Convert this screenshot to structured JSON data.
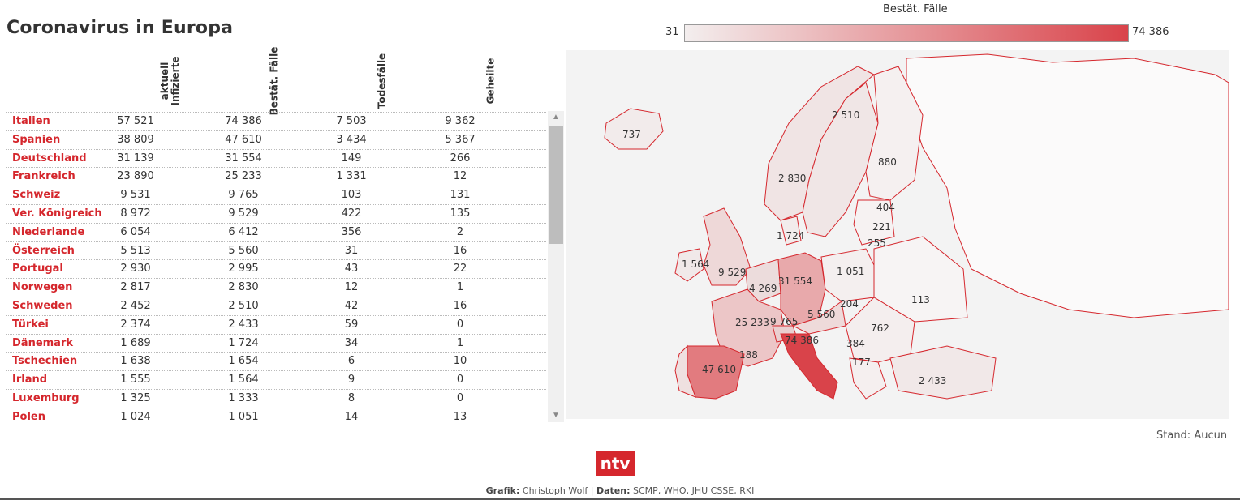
{
  "title": "Coronavirus in Europa",
  "legend": {
    "title": "Bestät. Fälle",
    "min": "31",
    "max": "74 386",
    "color_low": "#f3eeee",
    "color_high": "#d9434a"
  },
  "columns": [
    "aktuell\nInfizierte",
    "Bestät. Fälle",
    "Todesfälle",
    "Geheilte"
  ],
  "table_rows": [
    {
      "country": "Italien",
      "aktuell": "57 521",
      "bestaetigt": "74 386",
      "tote": "7 503",
      "geheilt": "9 362"
    },
    {
      "country": "Spanien",
      "aktuell": "38 809",
      "bestaetigt": "47 610",
      "tote": "3 434",
      "geheilt": "5 367"
    },
    {
      "country": "Deutschland",
      "aktuell": "31 139",
      "bestaetigt": "31 554",
      "tote": "149",
      "geheilt": "266"
    },
    {
      "country": "Frankreich",
      "aktuell": "23 890",
      "bestaetigt": "25 233",
      "tote": "1 331",
      "geheilt": "12"
    },
    {
      "country": "Schweiz",
      "aktuell": "9 531",
      "bestaetigt": "9 765",
      "tote": "103",
      "geheilt": "131"
    },
    {
      "country": "Ver. Königreich",
      "aktuell": "8 972",
      "bestaetigt": "9 529",
      "tote": "422",
      "geheilt": "135"
    },
    {
      "country": "Niederlande",
      "aktuell": "6 054",
      "bestaetigt": "6 412",
      "tote": "356",
      "geheilt": "2"
    },
    {
      "country": "Österreich",
      "aktuell": "5 513",
      "bestaetigt": "5 560",
      "tote": "31",
      "geheilt": "16"
    },
    {
      "country": "Portugal",
      "aktuell": "2 930",
      "bestaetigt": "2 995",
      "tote": "43",
      "geheilt": "22"
    },
    {
      "country": "Norwegen",
      "aktuell": "2 817",
      "bestaetigt": "2 830",
      "tote": "12",
      "geheilt": "1"
    },
    {
      "country": "Schweden",
      "aktuell": "2 452",
      "bestaetigt": "2 510",
      "tote": "42",
      "geheilt": "16"
    },
    {
      "country": "Türkei",
      "aktuell": "2 374",
      "bestaetigt": "2 433",
      "tote": "59",
      "geheilt": "0"
    },
    {
      "country": "Dänemark",
      "aktuell": "1 689",
      "bestaetigt": "1 724",
      "tote": "34",
      "geheilt": "1"
    },
    {
      "country": "Tschechien",
      "aktuell": "1 638",
      "bestaetigt": "1 654",
      "tote": "6",
      "geheilt": "10"
    },
    {
      "country": "Irland",
      "aktuell": "1 555",
      "bestaetigt": "1 564",
      "tote": "9",
      "geheilt": "0"
    },
    {
      "country": "Luxemburg",
      "aktuell": "1 325",
      "bestaetigt": "1 333",
      "tote": "8",
      "geheilt": "0"
    },
    {
      "country": "Polen",
      "aktuell": "1 024",
      "bestaetigt": "1 051",
      "tote": "14",
      "geheilt": "13"
    }
  ],
  "chart_data": {
    "type": "table",
    "columns": [
      "aktuell Infizierte",
      "Bestät. Fälle",
      "Todesfälle",
      "Geheilte"
    ],
    "categories": [
      "Italien",
      "Spanien",
      "Deutschland",
      "Frankreich",
      "Schweiz",
      "Ver. Königreich",
      "Niederlande",
      "Österreich",
      "Portugal",
      "Norwegen",
      "Schweden",
      "Türkei",
      "Dänemark",
      "Tschechien",
      "Irland",
      "Luxemburg",
      "Polen"
    ],
    "map_values": [
      737,
      2510,
      880,
      2830,
      404,
      221,
      255,
      1724,
      1564,
      9529,
      31554,
      1051,
      4269,
      204,
      113,
      5560,
      25233,
      9765,
      762,
      74386,
      384,
      188,
      177,
      47610,
      2433
    ],
    "color_scale": {
      "min": 31,
      "max": 74386
    }
  },
  "map_labels": [
    "737",
    "2 510",
    "880",
    "2 830",
    "404",
    "221",
    "255",
    "1 724",
    "1 564",
    "9 529",
    "31 554",
    "1 051",
    "4 269",
    "204",
    "113",
    "5 560",
    "25 233",
    "9 765",
    "762",
    "74 386",
    "384",
    "188",
    "177",
    "47 610",
    "2 433"
  ],
  "stand": "Stand: Aucun",
  "logo": "ntv",
  "credit": {
    "grafik_label": "Grafik:",
    "grafik": "Christoph Wolf",
    "sep": "|",
    "daten_label": "Daten:",
    "daten": "SCMP, WHO, JHU CSSE, RKI"
  }
}
